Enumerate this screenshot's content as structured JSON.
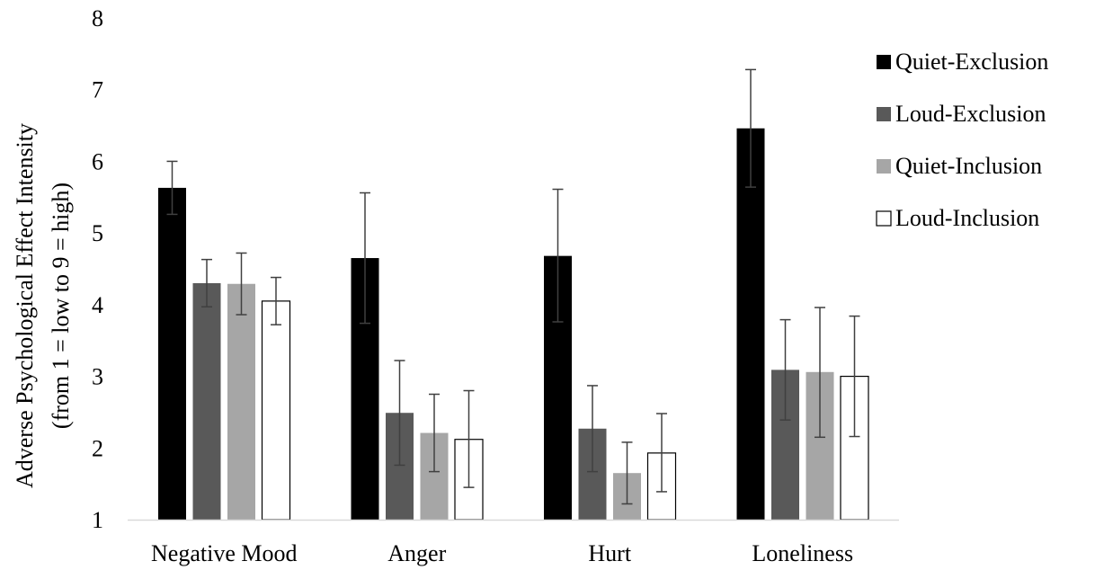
{
  "chart_data": {
    "type": "bar",
    "title": "",
    "xlabel": "",
    "ylabel_lines": [
      "Adverse Psychological Effect Intensity",
      "(from 1 = low to 9 = high)"
    ],
    "ylim": [
      1,
      8
    ],
    "yticks": [
      1,
      2,
      3,
      4,
      5,
      6,
      7,
      8
    ],
    "grid": false,
    "legend_position": "top-right",
    "categories": [
      "Negative Mood",
      "Anger",
      "Hurt",
      "Loneliness"
    ],
    "series": [
      {
        "name": "Quiet-Exclusion",
        "color": "#000000",
        "values": [
          5.63,
          4.65,
          4.68,
          6.46
        ],
        "error_low": [
          5.26,
          3.74,
          3.76,
          5.64
        ],
        "error_high": [
          6.0,
          5.56,
          5.61,
          7.28
        ]
      },
      {
        "name": "Loud-Exclusion",
        "color": "#595959",
        "values": [
          4.3,
          2.49,
          2.27,
          3.09
        ],
        "error_low": [
          3.97,
          1.76,
          1.67,
          2.39
        ],
        "error_high": [
          4.63,
          3.22,
          2.87,
          3.79
        ]
      },
      {
        "name": "Quiet-Inclusion",
        "color": "#a6a6a6",
        "values": [
          4.29,
          2.21,
          1.65,
          3.06
        ],
        "error_low": [
          3.86,
          1.67,
          1.22,
          2.15
        ],
        "error_high": [
          4.72,
          2.75,
          2.08,
          3.96
        ]
      },
      {
        "name": "Loud-Inclusion",
        "color": "#ffffff",
        "values": [
          4.05,
          2.12,
          1.93,
          3.0
        ],
        "error_low": [
          3.72,
          1.45,
          1.39,
          2.16
        ],
        "error_high": [
          4.38,
          2.8,
          2.48,
          3.84
        ]
      }
    ]
  }
}
